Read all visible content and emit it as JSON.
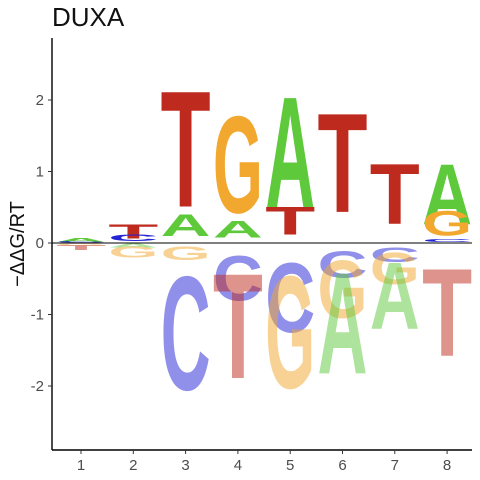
{
  "chart_data": {
    "type": "sequence-logo",
    "title": "DUXA",
    "ylabel": "−ΔΔG/RT",
    "xlabel": "",
    "ylim": [
      -2.9,
      2.9
    ],
    "yticks": [
      -2,
      -1,
      0,
      1,
      2
    ],
    "positions": [
      1,
      2,
      3,
      4,
      5,
      6,
      7,
      8
    ],
    "colors": {
      "A": "#5ec93b",
      "C": "#2323d6",
      "G": "#f2a72e",
      "T": "#be2a1e"
    },
    "columns": [
      {
        "position": 1,
        "stack": [
          {
            "letter": "A",
            "value": 0.08
          },
          {
            "letter": "C",
            "value": 0.03
          },
          {
            "letter": "G",
            "value": -0.04
          },
          {
            "letter": "T",
            "value": -0.12
          }
        ]
      },
      {
        "position": 2,
        "stack": [
          {
            "letter": "T",
            "value": 0.32
          },
          {
            "letter": "C",
            "value": 0.15
          },
          {
            "letter": "A",
            "value": -0.08
          },
          {
            "letter": "G",
            "value": -0.25
          }
        ]
      },
      {
        "position": 3,
        "stack": [
          {
            "letter": "T",
            "value": 2.6
          },
          {
            "letter": "A",
            "value": 0.5
          },
          {
            "letter": "G",
            "value": -0.3
          },
          {
            "letter": "C",
            "value": -2.55
          }
        ]
      },
      {
        "position": 4,
        "stack": [
          {
            "letter": "G",
            "value": 2.17
          },
          {
            "letter": "A",
            "value": 0.38
          },
          {
            "letter": "C",
            "value": -1.0
          },
          {
            "letter": "T",
            "value": -2.35
          }
        ]
      },
      {
        "position": 5,
        "stack": [
          {
            "letter": "A",
            "value": 2.5
          },
          {
            "letter": "T",
            "value": 0.62
          },
          {
            "letter": "C",
            "value": -1.55
          },
          {
            "letter": "G",
            "value": -2.52
          }
        ]
      },
      {
        "position": 6,
        "stack": [
          {
            "letter": "T",
            "value": 2.22
          },
          {
            "letter": "C",
            "value": -0.6
          },
          {
            "letter": "G",
            "value": -1.3
          },
          {
            "letter": "A",
            "value": -2.27
          }
        ]
      },
      {
        "position": 7,
        "stack": [
          {
            "letter": "T",
            "value": 1.35
          },
          {
            "letter": "C",
            "value": -0.33
          },
          {
            "letter": "G",
            "value": -0.71
          },
          {
            "letter": "A",
            "value": -1.5
          }
        ]
      },
      {
        "position": 8,
        "stack": [
          {
            "letter": "A",
            "value": 1.35
          },
          {
            "letter": "G",
            "value": 0.55
          },
          {
            "letter": "C",
            "value": 0.07
          },
          {
            "letter": "T",
            "value": -1.97
          }
        ]
      }
    ]
  }
}
